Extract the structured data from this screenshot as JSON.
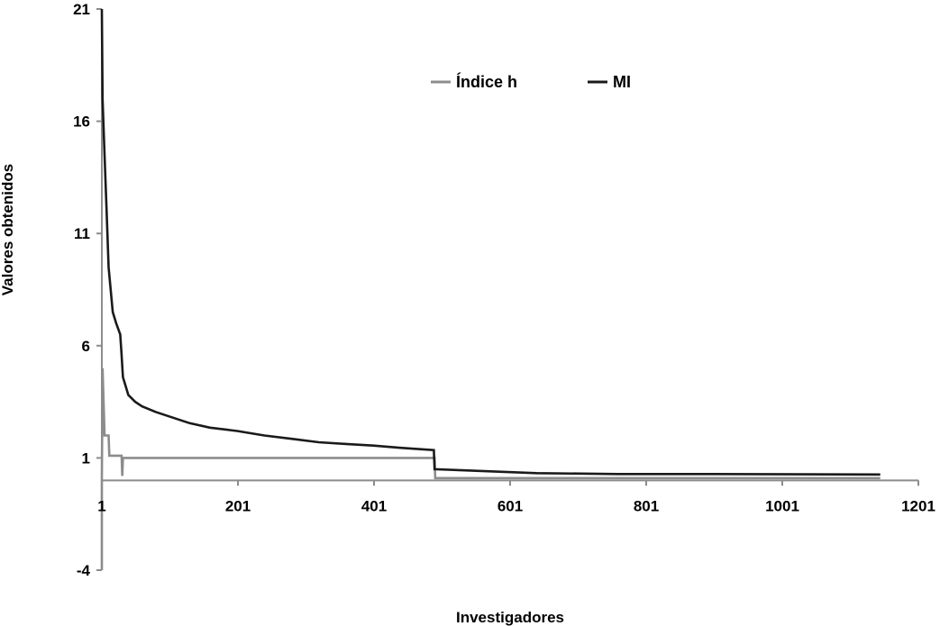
{
  "chart_data": {
    "type": "line",
    "title": "",
    "xlabel": "Investigadores",
    "ylabel": "Valores obtenidos",
    "xlim": [
      1,
      1201
    ],
    "ylim": [
      -4,
      21
    ],
    "x_ticks": [
      "1",
      "201",
      "401",
      "601",
      "801",
      "1001",
      "1201"
    ],
    "y_ticks": [
      "21",
      "16",
      "11",
      "6",
      "1",
      "-4"
    ],
    "grid": false,
    "legend_position": "top-center",
    "series": [
      {
        "name": "Índice h",
        "color": "#8c8c8c",
        "points": [
          [
            1,
            -4
          ],
          [
            1,
            0
          ],
          [
            2,
            5
          ],
          [
            4,
            3
          ],
          [
            5,
            2
          ],
          [
            11,
            2
          ],
          [
            12,
            1.1
          ],
          [
            30,
            1.1
          ],
          [
            31,
            0.2
          ],
          [
            32,
            1
          ],
          [
            490,
            1
          ],
          [
            491,
            0.1
          ],
          [
            1145,
            0.1
          ]
        ]
      },
      {
        "name": "MI",
        "color": "#1a1a1a",
        "points": [
          [
            1,
            21
          ],
          [
            2,
            17
          ],
          [
            3,
            16.2
          ],
          [
            5,
            14.5
          ],
          [
            8,
            12
          ],
          [
            11,
            9.5
          ],
          [
            14,
            8.5
          ],
          [
            17,
            7.5
          ],
          [
            22,
            7
          ],
          [
            28,
            6.5
          ],
          [
            30,
            5.6
          ],
          [
            32,
            4.6
          ],
          [
            35,
            4.3
          ],
          [
            40,
            3.8
          ],
          [
            50,
            3.5
          ],
          [
            60,
            3.3
          ],
          [
            80,
            3.05
          ],
          [
            100,
            2.85
          ],
          [
            130,
            2.55
          ],
          [
            160,
            2.35
          ],
          [
            200,
            2.2
          ],
          [
            240,
            2.0
          ],
          [
            280,
            1.85
          ],
          [
            320,
            1.7
          ],
          [
            360,
            1.62
          ],
          [
            400,
            1.55
          ],
          [
            440,
            1.45
          ],
          [
            489,
            1.35
          ],
          [
            490,
            0.5
          ],
          [
            530,
            0.45
          ],
          [
            640,
            0.32
          ],
          [
            760,
            0.28
          ],
          [
            900,
            0.28
          ],
          [
            1145,
            0.26
          ]
        ]
      }
    ]
  }
}
